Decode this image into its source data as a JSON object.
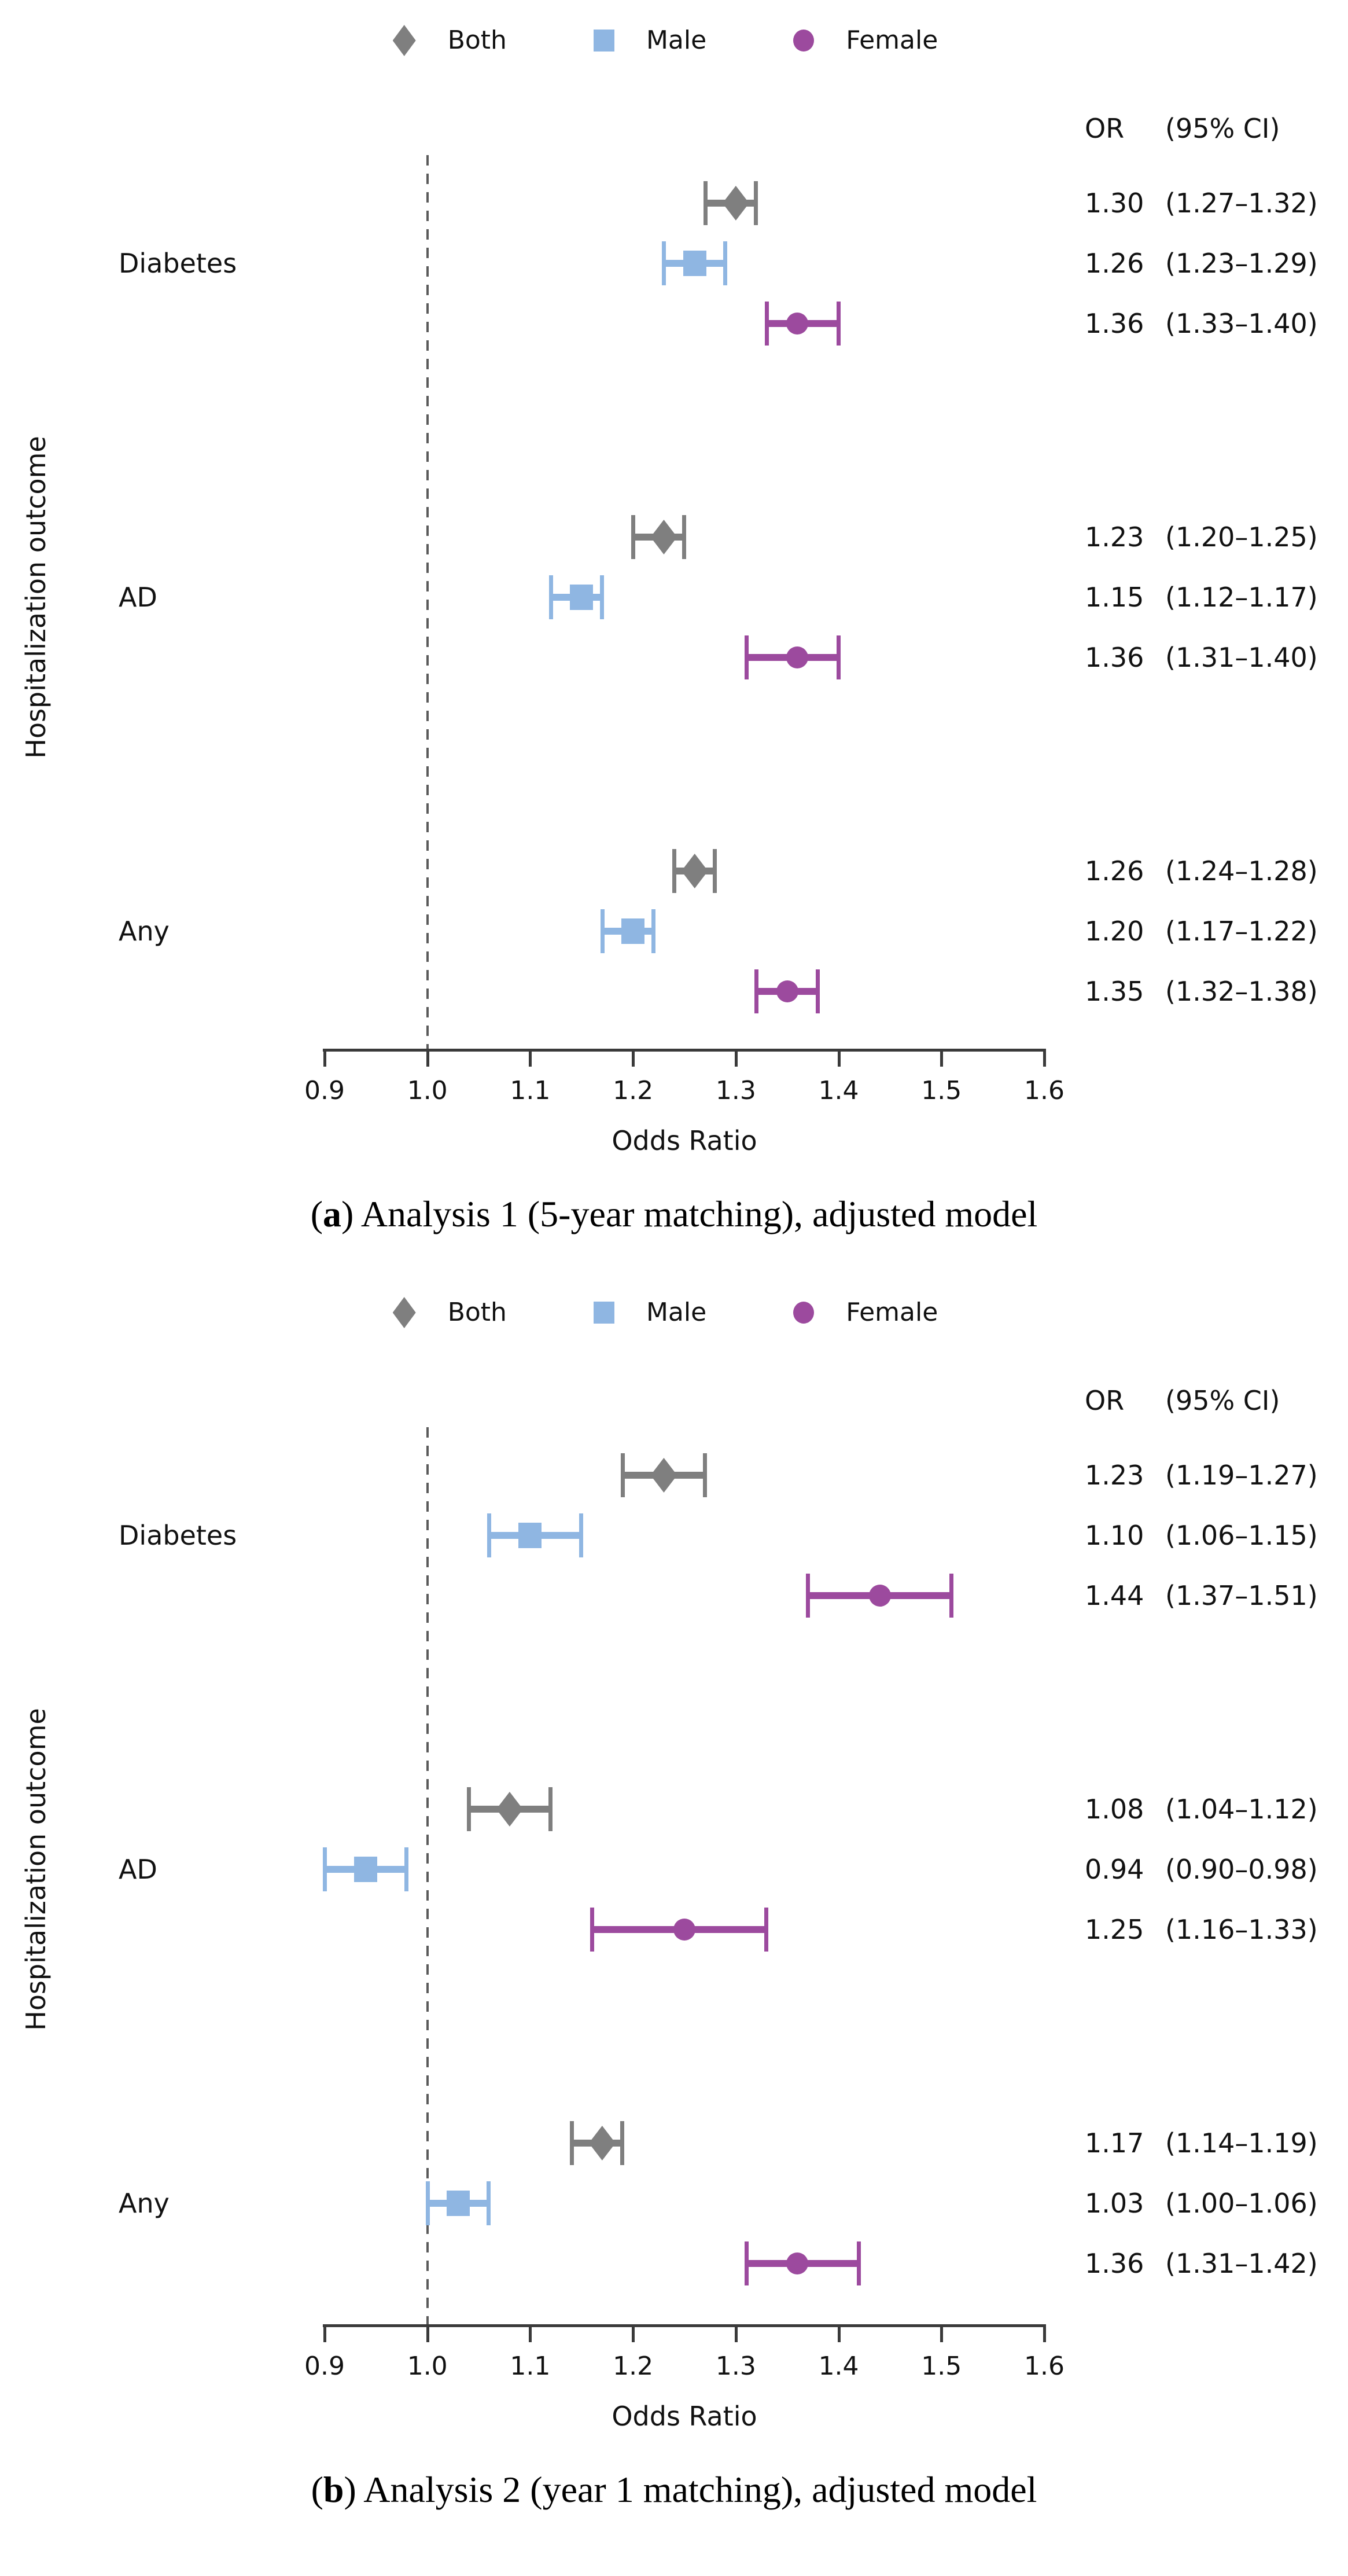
{
  "colors": {
    "both": "#7f7f7f",
    "male": "#8fb6e2",
    "female": "#9c4a9e",
    "ref_line": "#5a5a5a",
    "axis": "#3a3a3a"
  },
  "chart_data": [
    {
      "type": "forest",
      "panel": "a",
      "legend": [
        "Both",
        "Male",
        "Female"
      ],
      "header_or": "OR",
      "header_ci": "(95% CI)",
      "xlabel": "Odds Ratio",
      "ylabel": "Hospitalization outcome",
      "xlim": [
        0.9,
        1.6
      ],
      "xticks": [
        "0.9",
        "1.0",
        "1.1",
        "1.2",
        "1.3",
        "1.4",
        "1.5",
        "1.6"
      ],
      "ref_line": 1.0,
      "caption": {
        "open": "(",
        "bold": "a",
        "rest": ") Analysis 1 (5-year matching), adjusted model"
      },
      "groups": [
        {
          "label": "Diabetes",
          "rows": [
            {
              "series": "Both",
              "or": 1.3,
              "ci_lo": 1.27,
              "ci_hi": 1.32,
              "or_text": "1.30",
              "ci_text": "(1.27–1.32)"
            },
            {
              "series": "Male",
              "or": 1.26,
              "ci_lo": 1.23,
              "ci_hi": 1.29,
              "or_text": "1.26",
              "ci_text": "(1.23–1.29)"
            },
            {
              "series": "Female",
              "or": 1.36,
              "ci_lo": 1.33,
              "ci_hi": 1.4,
              "or_text": "1.36",
              "ci_text": "(1.33–1.40)"
            }
          ]
        },
        {
          "label": "AD",
          "rows": [
            {
              "series": "Both",
              "or": 1.23,
              "ci_lo": 1.2,
              "ci_hi": 1.25,
              "or_text": "1.23",
              "ci_text": "(1.20–1.25)"
            },
            {
              "series": "Male",
              "or": 1.15,
              "ci_lo": 1.12,
              "ci_hi": 1.17,
              "or_text": "1.15",
              "ci_text": "(1.12–1.17)"
            },
            {
              "series": "Female",
              "or": 1.36,
              "ci_lo": 1.31,
              "ci_hi": 1.4,
              "or_text": "1.36",
              "ci_text": "(1.31–1.40)"
            }
          ]
        },
        {
          "label": "Any",
          "rows": [
            {
              "series": "Both",
              "or": 1.26,
              "ci_lo": 1.24,
              "ci_hi": 1.28,
              "or_text": "1.26",
              "ci_text": "(1.24–1.28)"
            },
            {
              "series": "Male",
              "or": 1.2,
              "ci_lo": 1.17,
              "ci_hi": 1.22,
              "or_text": "1.20",
              "ci_text": "(1.17–1.22)"
            },
            {
              "series": "Female",
              "or": 1.35,
              "ci_lo": 1.32,
              "ci_hi": 1.38,
              "or_text": "1.35",
              "ci_text": "(1.32–1.38)"
            }
          ]
        }
      ]
    },
    {
      "type": "forest",
      "panel": "b",
      "legend": [
        "Both",
        "Male",
        "Female"
      ],
      "header_or": "OR",
      "header_ci": "(95% CI)",
      "xlabel": "Odds Ratio",
      "ylabel": "Hospitalization outcome",
      "xlim": [
        0.9,
        1.6
      ],
      "xticks": [
        "0.9",
        "1.0",
        "1.1",
        "1.2",
        "1.3",
        "1.4",
        "1.5",
        "1.6"
      ],
      "ref_line": 1.0,
      "caption": {
        "open": "(",
        "bold": "b",
        "rest": ") Analysis 2 (year 1 matching), adjusted model"
      },
      "groups": [
        {
          "label": "Diabetes",
          "rows": [
            {
              "series": "Both",
              "or": 1.23,
              "ci_lo": 1.19,
              "ci_hi": 1.27,
              "or_text": "1.23",
              "ci_text": "(1.19–1.27)"
            },
            {
              "series": "Male",
              "or": 1.1,
              "ci_lo": 1.06,
              "ci_hi": 1.15,
              "or_text": "1.10",
              "ci_text": "(1.06–1.15)"
            },
            {
              "series": "Female",
              "or": 1.44,
              "ci_lo": 1.37,
              "ci_hi": 1.51,
              "or_text": "1.44",
              "ci_text": "(1.37–1.51)"
            }
          ]
        },
        {
          "label": "AD",
          "rows": [
            {
              "series": "Both",
              "or": 1.08,
              "ci_lo": 1.04,
              "ci_hi": 1.12,
              "or_text": "1.08",
              "ci_text": "(1.04–1.12)"
            },
            {
              "series": "Male",
              "or": 0.94,
              "ci_lo": 0.9,
              "ci_hi": 0.98,
              "or_text": "0.94",
              "ci_text": "(0.90–0.98)"
            },
            {
              "series": "Female",
              "or": 1.25,
              "ci_lo": 1.16,
              "ci_hi": 1.33,
              "or_text": "1.25",
              "ci_text": "(1.16–1.33)"
            }
          ]
        },
        {
          "label": "Any",
          "rows": [
            {
              "series": "Both",
              "or": 1.17,
              "ci_lo": 1.14,
              "ci_hi": 1.19,
              "or_text": "1.17",
              "ci_text": "(1.14–1.19)"
            },
            {
              "series": "Male",
              "or": 1.03,
              "ci_lo": 1.0,
              "ci_hi": 1.06,
              "or_text": "1.03",
              "ci_text": "(1.00–1.06)"
            },
            {
              "series": "Female",
              "or": 1.36,
              "ci_lo": 1.31,
              "ci_hi": 1.42,
              "or_text": "1.36",
              "ci_text": "(1.31–1.42)"
            }
          ]
        }
      ]
    }
  ]
}
